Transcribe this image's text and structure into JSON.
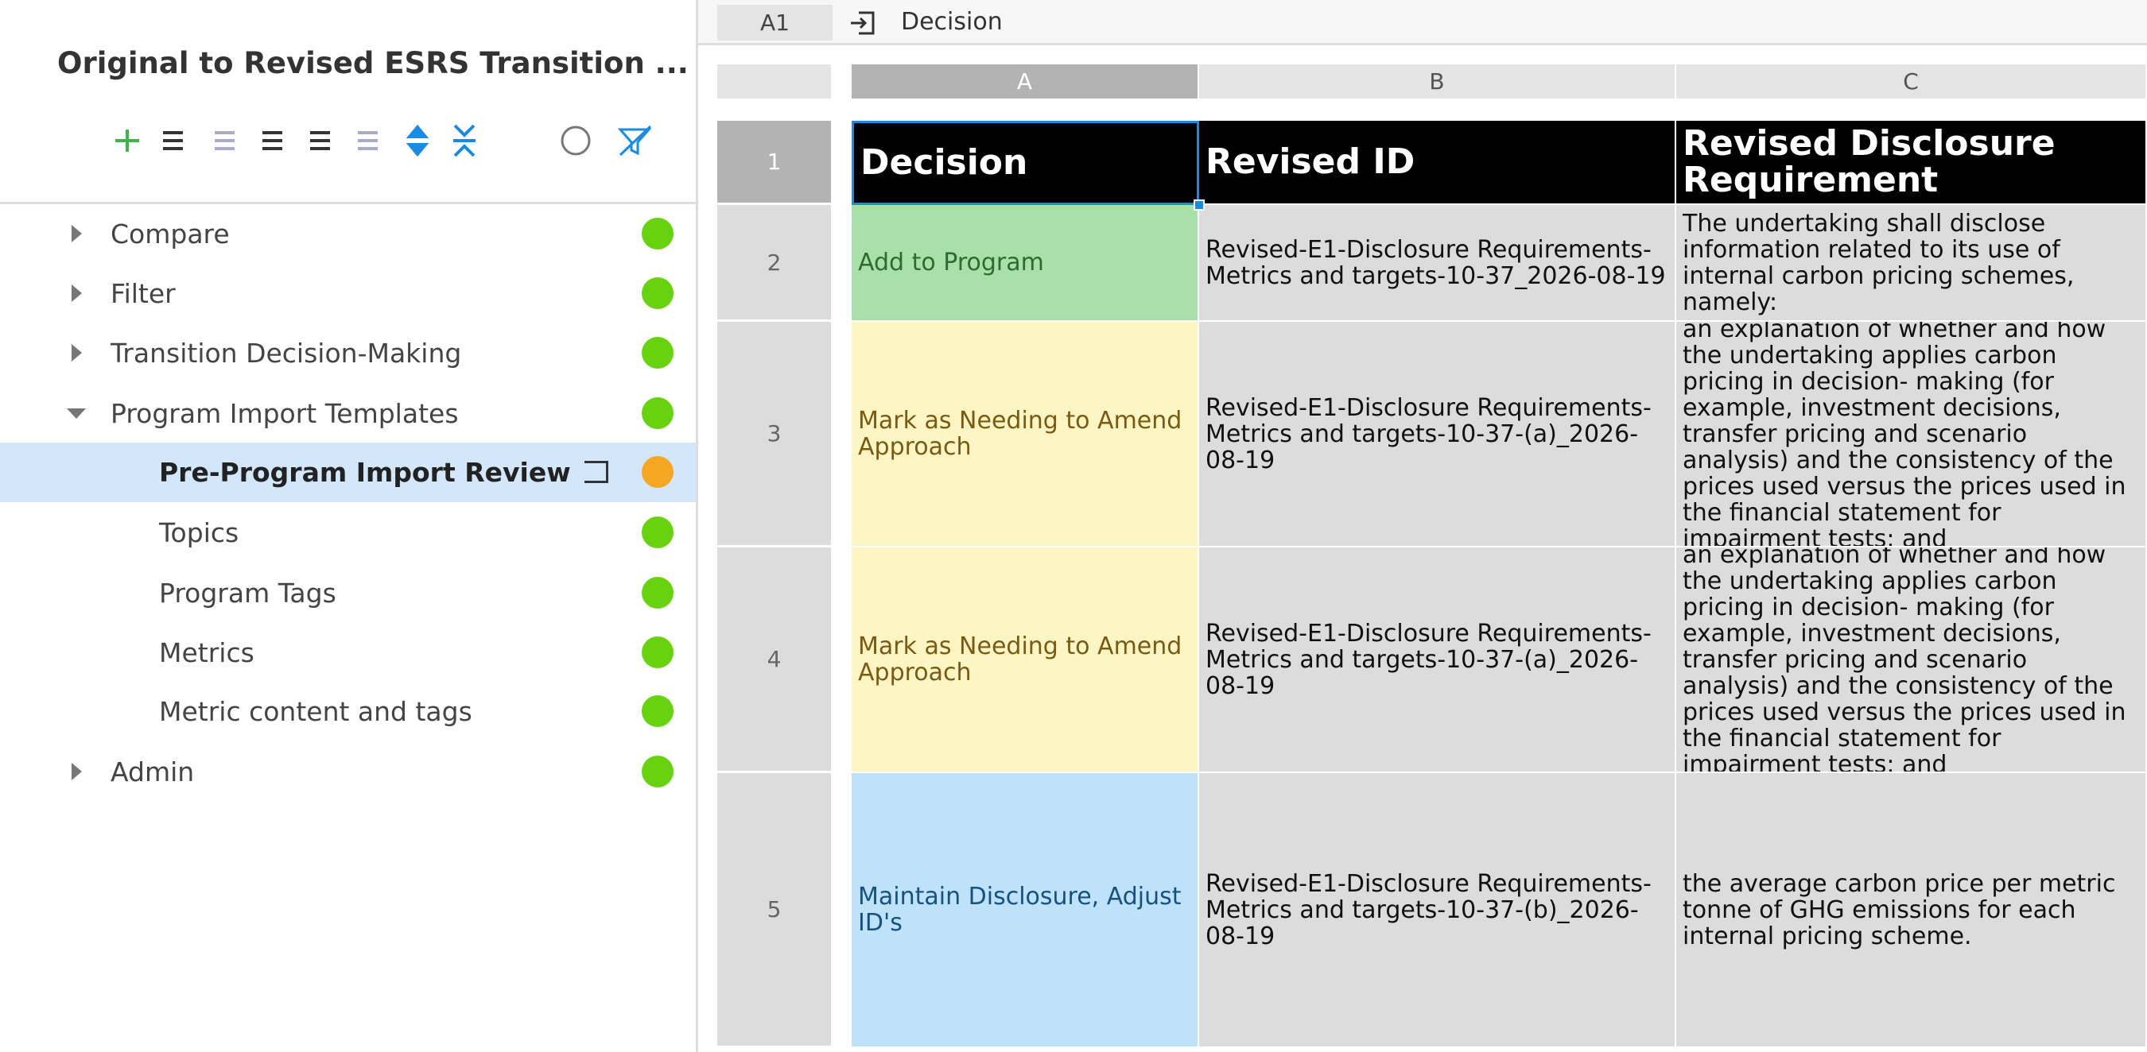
{
  "sidebar": {
    "title": "Original to Revised ESRS Transition ...",
    "tree": [
      {
        "label": "Compare"
      },
      {
        "label": "Filter"
      },
      {
        "label": "Transition Decision-Making"
      },
      {
        "label": "Program Import Templates"
      },
      {
        "label": "Pre-Program Import Review"
      },
      {
        "label": "Topics"
      },
      {
        "label": "Program Tags"
      },
      {
        "label": "Metrics"
      },
      {
        "label": "Metric content and tags"
      },
      {
        "label": "Admin"
      }
    ]
  },
  "formula_bar": {
    "cell_ref": "A1",
    "value": "Decision"
  },
  "sheet": {
    "columns": [
      "A",
      "B",
      "C"
    ],
    "row_numbers": [
      "1",
      "2",
      "3",
      "4",
      "5"
    ],
    "rows": [
      [
        "Decision",
        "Revised ID",
        "Revised Disclosure Requirement"
      ],
      [
        "Add to Program",
        "Revised-E1-Disclosure Requirements-Metrics and targets-10-37_2026-08-19",
        "The undertaking shall disclose information related to its use of internal carbon pricing schemes, namely:"
      ],
      [
        "Mark as Needing to Amend Approach",
        "Revised-E1-Disclosure Requirements-Metrics and targets-10-37-(a)_2026-08-19",
        "an explanation of whether and how the undertaking applies carbon pricing in decision- making (for example, investment decisions, transfer pricing and scenario analysis) and the consistency of the prices used versus the prices used in the financial statement for impairment tests; and"
      ],
      [
        "Mark as Needing to Amend Approach",
        "Revised-E1-Disclosure Requirements-Metrics and targets-10-37-(a)_2026-08-19",
        "an explanation of whether and how the undertaking applies carbon pricing in decision- making (for example, investment decisions, transfer pricing and scenario analysis) and the consistency of the prices used versus the prices used in the financial statement for impairment tests; and"
      ],
      [
        "Maintain Disclosure, Adjust ID's",
        "Revised-E1-Disclosure Requirements-Metrics and targets-10-37-(b)_2026-08-19",
        "the average carbon price per metric tonne of GHG emissions for each internal pricing scheme."
      ]
    ]
  }
}
